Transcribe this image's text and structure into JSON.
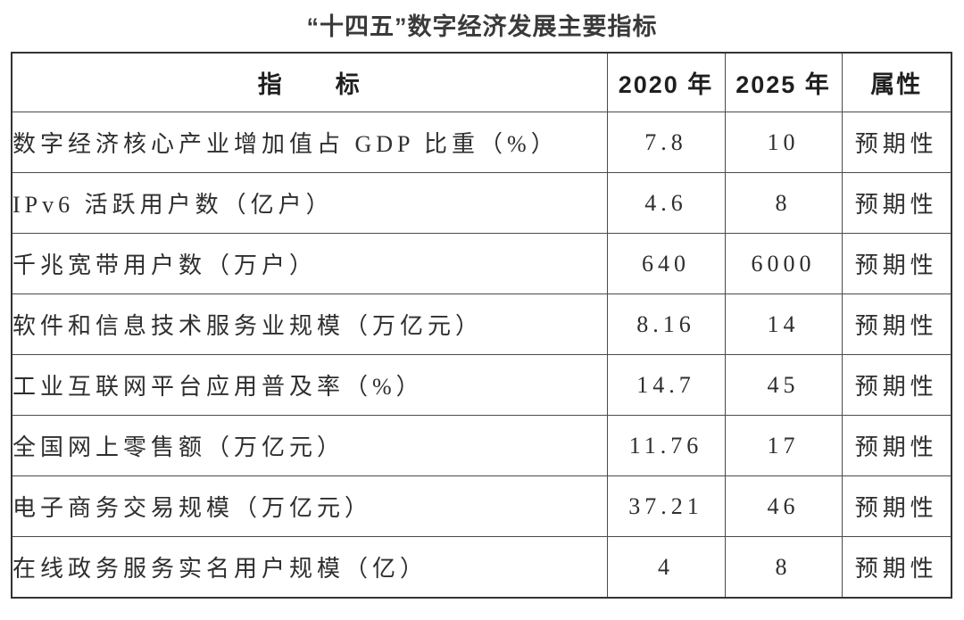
{
  "page": {
    "title": "“十四五”数字经济发展主要指标"
  },
  "colors": {
    "background": "#ffffff",
    "text": "#2e2e2e",
    "title_text": "#3a3a3a",
    "border": "#4a4a4a"
  },
  "table": {
    "headers": {
      "indicator": "指　　标",
      "y2020": "2020 年",
      "y2025": "2025 年",
      "attribute": "属性"
    },
    "rows": [
      {
        "indicator": "数字经济核心产业增加值占 GDP 比重（%）",
        "y2020": "7.8",
        "y2025": "10",
        "attribute": "预期性"
      },
      {
        "indicator": "IPv6 活跃用户数（亿户）",
        "y2020": "4.6",
        "y2025": "8",
        "attribute": "预期性"
      },
      {
        "indicator": "千兆宽带用户数（万户）",
        "y2020": "640",
        "y2025": "6000",
        "attribute": "预期性"
      },
      {
        "indicator": "软件和信息技术服务业规模（万亿元）",
        "y2020": "8.16",
        "y2025": "14",
        "attribute": "预期性"
      },
      {
        "indicator": "工业互联网平台应用普及率（%）",
        "y2020": "14.7",
        "y2025": "45",
        "attribute": "预期性"
      },
      {
        "indicator": "全国网上零售额（万亿元）",
        "y2020": "11.76",
        "y2025": "17",
        "attribute": "预期性"
      },
      {
        "indicator": "电子商务交易规模（万亿元）",
        "y2020": "37.21",
        "y2025": "46",
        "attribute": "预期性"
      },
      {
        "indicator": "在线政务服务实名用户规模（亿）",
        "y2020": "4",
        "y2025": "8",
        "attribute": "预期性"
      }
    ]
  },
  "chart_data": {
    "type": "table",
    "title": "“十四五”数字经济发展主要指标",
    "columns": [
      "指标",
      "2020 年",
      "2025 年",
      "属性"
    ],
    "rows": [
      [
        "数字经济核心产业增加值占 GDP 比重（%）",
        7.8,
        10,
        "预期性"
      ],
      [
        "IPv6 活跃用户数（亿户）",
        4.6,
        8,
        "预期性"
      ],
      [
        "千兆宽带用户数（万户）",
        640,
        6000,
        "预期性"
      ],
      [
        "软件和信息技术服务业规模（万亿元）",
        8.16,
        14,
        "预期性"
      ],
      [
        "工业互联网平台应用普及率（%）",
        14.7,
        45,
        "预期性"
      ],
      [
        "全国网上零售额（万亿元）",
        11.76,
        17,
        "预期性"
      ],
      [
        "电子商务交易规模（万亿元）",
        37.21,
        46,
        "预期性"
      ],
      [
        "在线政务服务实名用户规模（亿）",
        4,
        8,
        "预期性"
      ]
    ]
  }
}
